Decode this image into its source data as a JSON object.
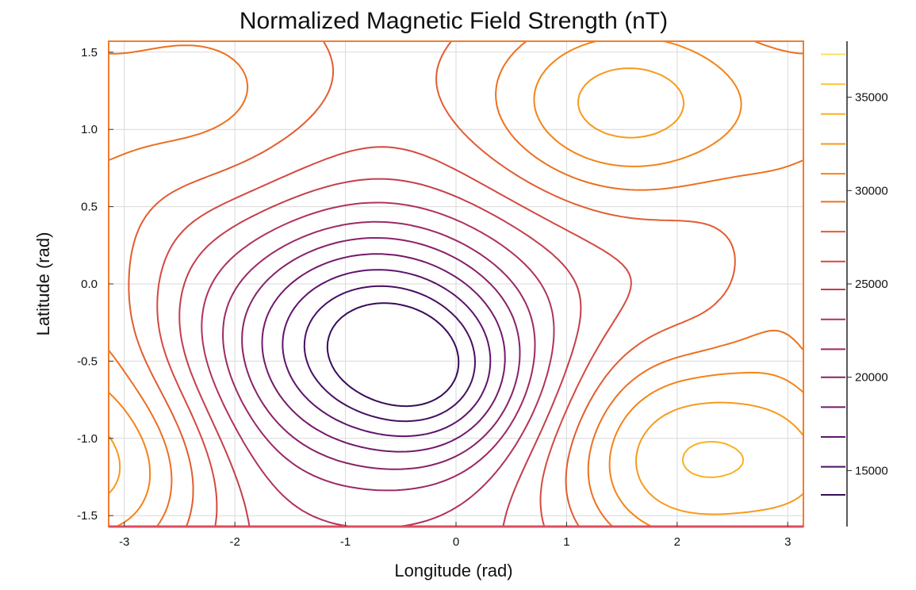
{
  "chart_data": {
    "type": "contour",
    "title": "Normalized Magnetic Field Strength (nT)",
    "xlabel": "Longitude (rad)",
    "ylabel": "Latitude (rad)",
    "xlim": [
      -3.14159,
      3.14159
    ],
    "ylim": [
      -1.5708,
      1.5708
    ],
    "x_ticks": [
      -3,
      -2,
      -1,
      0,
      1,
      2,
      3
    ],
    "x_tick_labels": [
      "-3",
      "-2",
      "-1",
      "0",
      "1",
      "2",
      "3"
    ],
    "y_ticks": [
      -1.5,
      -1.0,
      -0.5,
      0.0,
      0.5,
      1.0,
      1.5
    ],
    "y_tick_labels": [
      "-1.5",
      "-1.0",
      "-0.5",
      "0.0",
      "0.5",
      "1.0",
      "1.5"
    ],
    "grid": true,
    "colorbar": {
      "range": [
        12000,
        38000
      ],
      "ticks": [
        15000,
        20000,
        25000,
        30000,
        35000
      ],
      "tick_labels": [
        "15000",
        "20000",
        "25000",
        "30000",
        "35000"
      ],
      "levels": [
        13700,
        15200,
        16800,
        18400,
        20000,
        21500,
        23100,
        24700,
        26200,
        27800,
        29400,
        30900,
        32500,
        34100,
        35700,
        37300
      ],
      "colormap": "inferno"
    },
    "field_model": {
      "base": 25500,
      "lat_gradient": 4000,
      "lows": [
        {
          "x": -0.75,
          "y": -0.35,
          "amplitude": -12000,
          "sx": 0.95,
          "sy": 0.55
        },
        {
          "x": -0.1,
          "y": -0.65,
          "amplitude": -3500,
          "sx": 0.55,
          "sy": 0.35
        }
      ],
      "highs": [
        {
          "x": 2.05,
          "y": -1.15,
          "amplitude": 9500,
          "sx": 0.85,
          "sy": 0.55
        },
        {
          "x": 1.55,
          "y": 1.15,
          "amplitude": 6500,
          "sx": 0.9,
          "sy": 0.45
        },
        {
          "x": -2.9,
          "y": -1.25,
          "amplitude": 5000,
          "sx": 0.6,
          "sy": 0.55
        },
        {
          "x": -2.3,
          "y": 1.2,
          "amplitude": 3000,
          "sx": 0.8,
          "sy": 0.5
        },
        {
          "x": 3.05,
          "y": 0.0,
          "amplitude": 2500,
          "sx": 0.45,
          "sy": 0.5
        }
      ]
    },
    "colors": {
      "frame": "#f07e2f",
      "frame_bottom": "#dd4d5f",
      "grid": "#d9d9d9"
    }
  }
}
